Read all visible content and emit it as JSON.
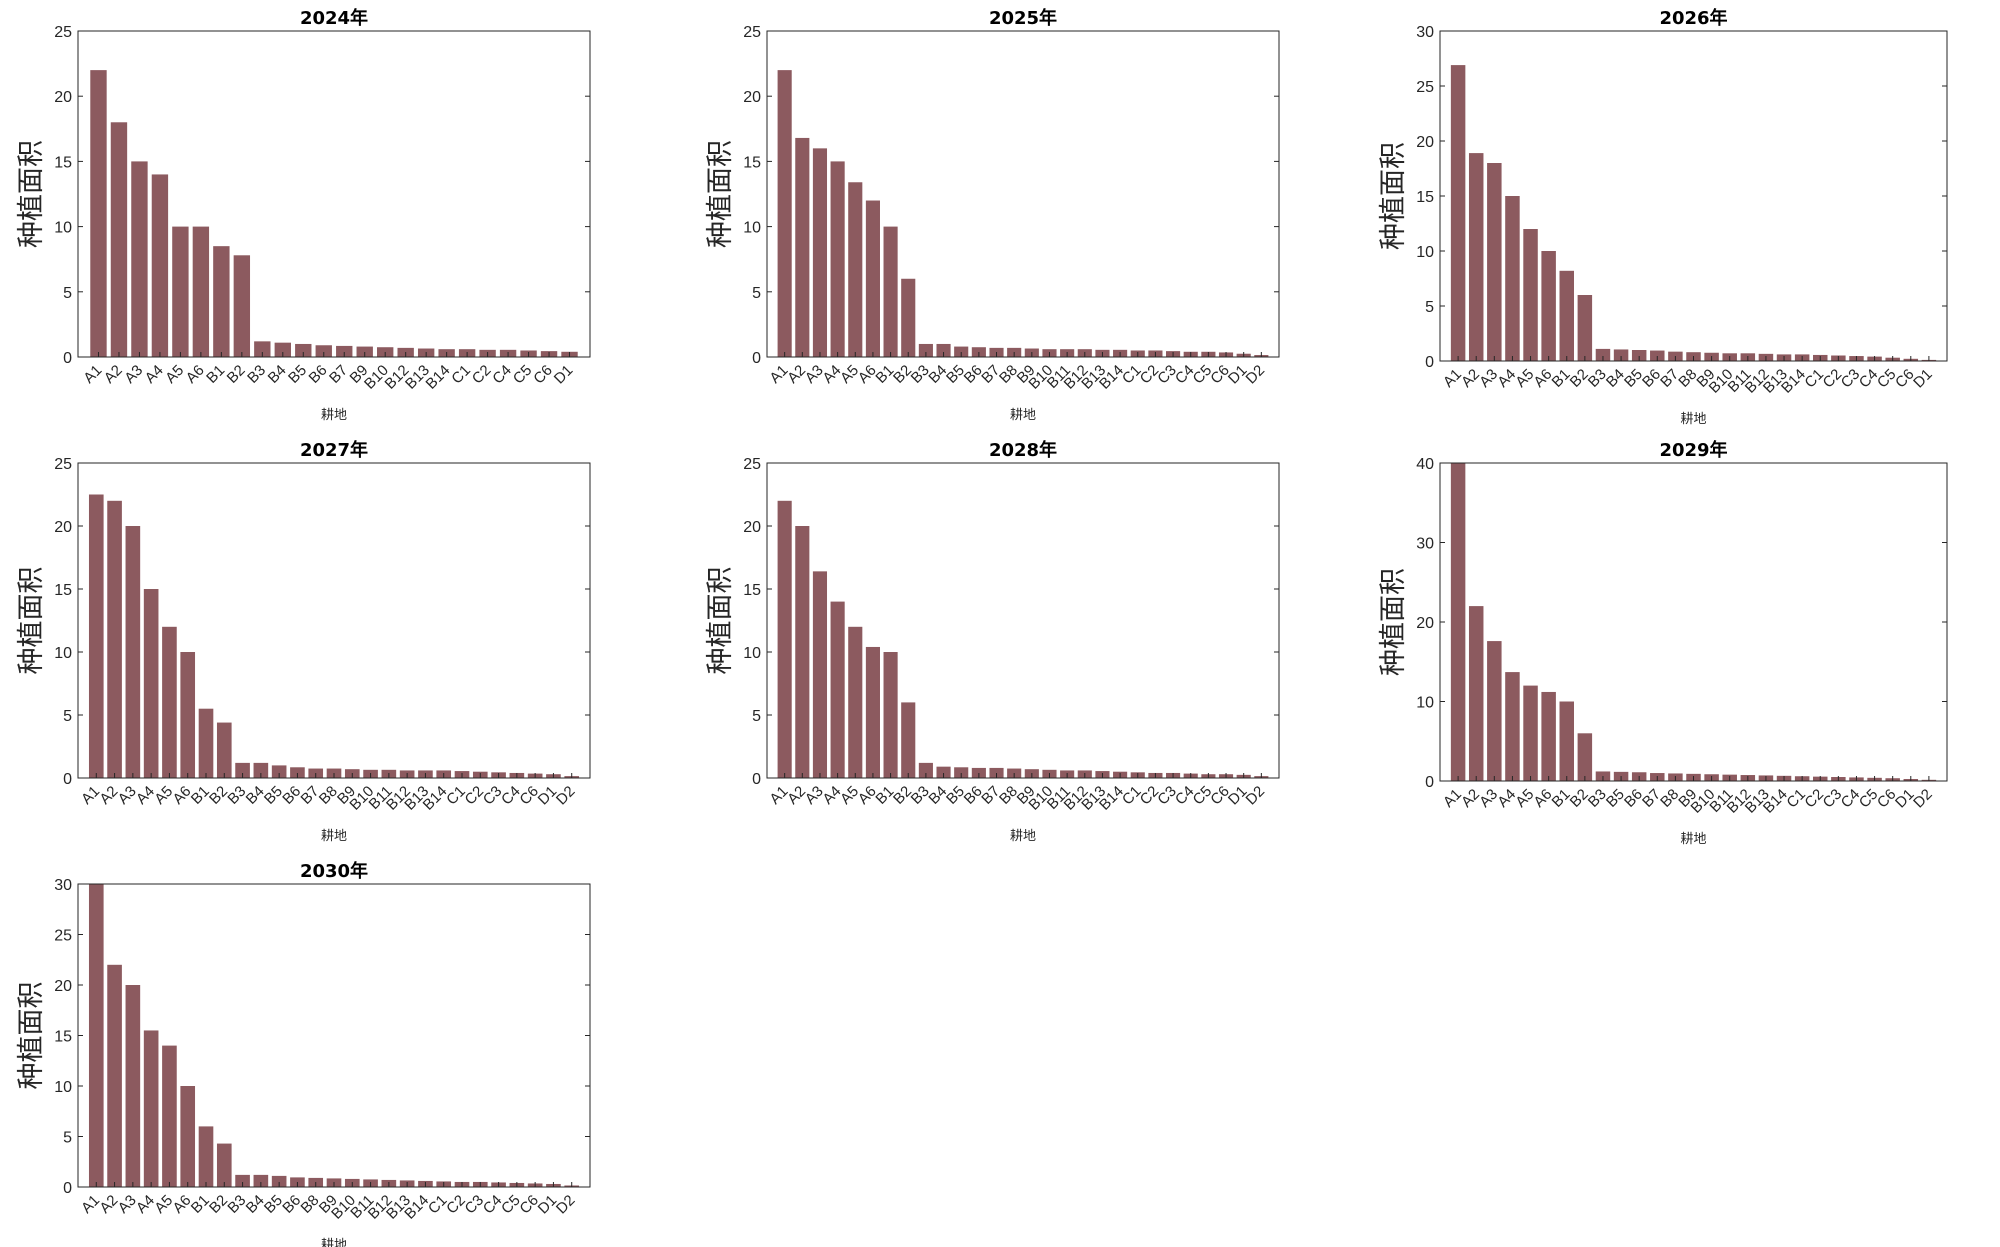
{
  "figure": {
    "bar_color": "#8c5a5f",
    "axis_color": "#262626",
    "background": "#ffffff"
  },
  "chart_data": [
    {
      "type": "bar",
      "title": "2024年",
      "xlabel": "耕地",
      "ylabel": "种植面积",
      "ylim": [
        0,
        25
      ],
      "yticks": [
        0,
        5,
        10,
        15,
        20,
        25
      ],
      "categories": [
        "A1",
        "A2",
        "A3",
        "A4",
        "A5",
        "A6",
        "B1",
        "B2",
        "B3",
        "B4",
        "B5",
        "B6",
        "B7",
        "B9",
        "B10",
        "B12",
        "B13",
        "B14",
        "C1",
        "C2",
        "C4",
        "C5",
        "C6",
        "D1"
      ],
      "values": [
        22,
        18,
        15,
        14,
        10,
        10,
        8.5,
        7.8,
        1.2,
        1.1,
        1.0,
        0.9,
        0.85,
        0.8,
        0.75,
        0.7,
        0.65,
        0.6,
        0.6,
        0.55,
        0.55,
        0.5,
        0.45,
        0.4
      ]
    },
    {
      "type": "bar",
      "title": "2025年",
      "xlabel": "耕地",
      "ylabel": "种植面积",
      "ylim": [
        0,
        25
      ],
      "yticks": [
        0,
        5,
        10,
        15,
        20,
        25
      ],
      "categories": [
        "A1",
        "A2",
        "A3",
        "A4",
        "A5",
        "A6",
        "B1",
        "B2",
        "B3",
        "B4",
        "B5",
        "B6",
        "B7",
        "B8",
        "B9",
        "B10",
        "B11",
        "B12",
        "B13",
        "B14",
        "C1",
        "C2",
        "C3",
        "C4",
        "C5",
        "C6",
        "D1",
        "D2"
      ],
      "values": [
        22,
        16.8,
        16,
        15,
        13.4,
        12,
        10,
        6,
        1.0,
        1.0,
        0.8,
        0.75,
        0.7,
        0.7,
        0.65,
        0.6,
        0.6,
        0.6,
        0.55,
        0.55,
        0.5,
        0.5,
        0.45,
        0.4,
        0.4,
        0.35,
        0.25,
        0.15
      ]
    },
    {
      "type": "bar",
      "title": "2026年",
      "xlabel": "耕地",
      "ylabel": "种植面积",
      "ylim": [
        0,
        30
      ],
      "yticks": [
        0,
        5,
        10,
        15,
        20,
        25,
        30
      ],
      "categories": [
        "A1",
        "A2",
        "A3",
        "A4",
        "A5",
        "A6",
        "B1",
        "B2",
        "B3",
        "B4",
        "B5",
        "B6",
        "B7",
        "B8",
        "B9",
        "B10",
        "B11",
        "B12",
        "B13",
        "B14",
        "C1",
        "C2",
        "C3",
        "C4",
        "C5",
        "C6",
        "D1"
      ],
      "values": [
        26.9,
        18.9,
        18,
        15,
        12,
        10,
        8.2,
        6,
        1.1,
        1.05,
        1.0,
        0.95,
        0.85,
        0.8,
        0.75,
        0.7,
        0.7,
        0.65,
        0.6,
        0.6,
        0.55,
        0.5,
        0.45,
        0.4,
        0.3,
        0.2,
        0.1
      ]
    },
    {
      "type": "bar",
      "title": "2027年",
      "xlabel": "耕地",
      "ylabel": "种植面积",
      "ylim": [
        0,
        25
      ],
      "yticks": [
        0,
        5,
        10,
        15,
        20,
        25
      ],
      "categories": [
        "A1",
        "A2",
        "A3",
        "A4",
        "A5",
        "A6",
        "B1",
        "B2",
        "B3",
        "B4",
        "B5",
        "B6",
        "B7",
        "B8",
        "B9",
        "B10",
        "B11",
        "B12",
        "B13",
        "B14",
        "C1",
        "C2",
        "C3",
        "C4",
        "C6",
        "D1",
        "D2"
      ],
      "values": [
        22.5,
        22,
        20,
        15,
        12,
        10,
        5.5,
        4.4,
        1.2,
        1.2,
        1.0,
        0.85,
        0.75,
        0.75,
        0.7,
        0.65,
        0.65,
        0.6,
        0.6,
        0.6,
        0.55,
        0.5,
        0.45,
        0.4,
        0.35,
        0.3,
        0.15
      ]
    },
    {
      "type": "bar",
      "title": "2028年",
      "xlabel": "耕地",
      "ylabel": "种植面积",
      "ylim": [
        0,
        25
      ],
      "yticks": [
        0,
        5,
        10,
        15,
        20,
        25
      ],
      "categories": [
        "A1",
        "A2",
        "A3",
        "A4",
        "A5",
        "A6",
        "B1",
        "B2",
        "B3",
        "B4",
        "B5",
        "B6",
        "B7",
        "B8",
        "B9",
        "B10",
        "B11",
        "B12",
        "B13",
        "B14",
        "C1",
        "C2",
        "C3",
        "C4",
        "C5",
        "C6",
        "D1",
        "D2"
      ],
      "values": [
        22,
        20,
        16.4,
        14,
        12,
        10.4,
        10,
        6,
        1.2,
        0.9,
        0.85,
        0.8,
        0.8,
        0.75,
        0.7,
        0.65,
        0.6,
        0.6,
        0.55,
        0.5,
        0.45,
        0.4,
        0.4,
        0.35,
        0.3,
        0.3,
        0.25,
        0.15
      ]
    },
    {
      "type": "bar",
      "title": "2029年",
      "xlabel": "耕地",
      "ylabel": "种植面积",
      "ylim": [
        0,
        40
      ],
      "yticks": [
        0,
        10,
        20,
        30,
        40
      ],
      "categories": [
        "A1",
        "A2",
        "A3",
        "A4",
        "A5",
        "A6",
        "B1",
        "B2",
        "B3",
        "B5",
        "B6",
        "B7",
        "B8",
        "B9",
        "B10",
        "B11",
        "B12",
        "B13",
        "B14",
        "C1",
        "C2",
        "C3",
        "C4",
        "C5",
        "C6",
        "D1",
        "D2"
      ],
      "values": [
        40,
        22,
        17.6,
        13.7,
        12,
        11.2,
        10,
        6,
        1.2,
        1.15,
        1.1,
        1.0,
        0.95,
        0.9,
        0.85,
        0.8,
        0.75,
        0.7,
        0.65,
        0.6,
        0.55,
        0.5,
        0.45,
        0.4,
        0.35,
        0.25,
        0.15
      ]
    },
    {
      "type": "bar",
      "title": "2030年",
      "xlabel": "耕地",
      "ylabel": "种植面积",
      "ylim": [
        0,
        30
      ],
      "yticks": [
        0,
        5,
        10,
        15,
        20,
        25,
        30
      ],
      "categories": [
        "A1",
        "A2",
        "A3",
        "A4",
        "A5",
        "A6",
        "B1",
        "B2",
        "B3",
        "B4",
        "B5",
        "B6",
        "B8",
        "B9",
        "B10",
        "B11",
        "B12",
        "B13",
        "B14",
        "C1",
        "C2",
        "C3",
        "C4",
        "C5",
        "C6",
        "D1",
        "D2"
      ],
      "values": [
        30,
        22,
        20,
        15.5,
        14,
        10,
        6,
        4.3,
        1.2,
        1.2,
        1.1,
        0.95,
        0.9,
        0.85,
        0.8,
        0.75,
        0.7,
        0.65,
        0.6,
        0.55,
        0.5,
        0.5,
        0.45,
        0.4,
        0.35,
        0.3,
        0.15
      ]
    }
  ]
}
